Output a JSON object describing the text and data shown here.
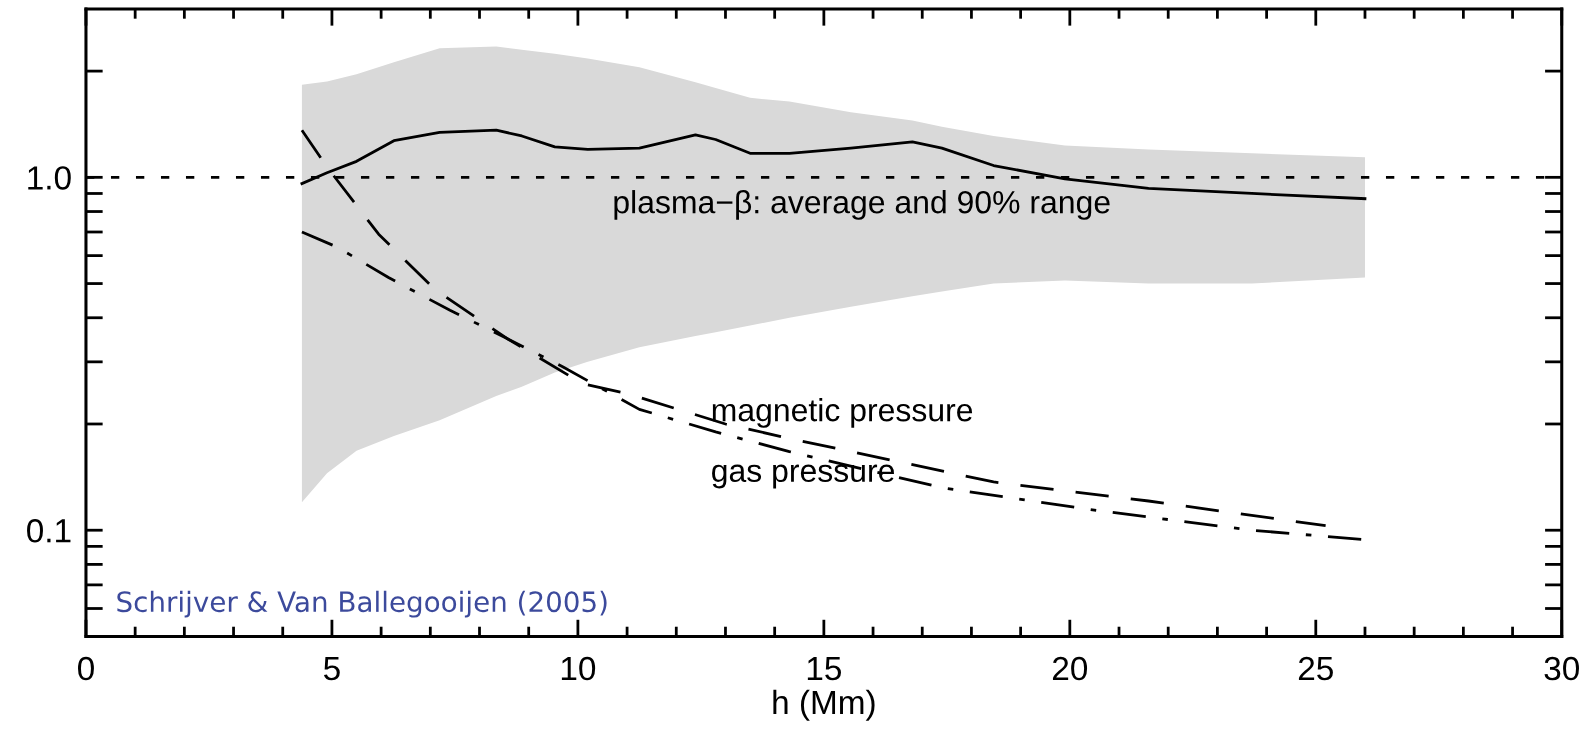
{
  "chart_data": {
    "type": "line",
    "xlabel": "h (Mm)",
    "log": "y",
    "grid": false,
    "legend": false,
    "xlim": [
      0,
      30
    ],
    "ylim": [
      0.05,
      3
    ],
    "xticks": [
      0,
      {
        "value": 1,
        "label": null
      },
      {
        "value": 2,
        "label": null
      },
      {
        "value": 3,
        "label": null
      },
      {
        "value": 4,
        "label": null
      },
      5,
      {
        "value": 6,
        "label": null
      },
      {
        "value": 7,
        "label": null
      },
      {
        "value": 8,
        "label": null
      },
      {
        "value": 9,
        "label": null
      },
      10,
      {
        "value": 11,
        "label": null
      },
      {
        "value": 12,
        "label": null
      },
      {
        "value": 13,
        "label": null
      },
      {
        "value": 14,
        "label": null
      },
      15,
      {
        "value": 16,
        "label": null
      },
      {
        "value": 17,
        "label": null
      },
      {
        "value": 18,
        "label": null
      },
      {
        "value": 19,
        "label": null
      },
      20,
      {
        "value": 21,
        "label": null
      },
      {
        "value": 22,
        "label": null
      },
      {
        "value": 23,
        "label": null
      },
      {
        "value": 24,
        "label": null
      },
      25,
      {
        "value": 26,
        "label": null
      },
      {
        "value": 27,
        "label": null
      },
      {
        "value": 28,
        "label": null
      },
      {
        "value": 29,
        "label": null
      },
      30
    ],
    "yticks": [
      {
        "value": 0.1,
        "label": "0.1"
      },
      {
        "value": 1,
        "label": "1.0"
      }
    ],
    "ref_lines": [
      {
        "axis": "y",
        "value": 1,
        "line_style": "dotted",
        "color": "#000000"
      }
    ],
    "series": [
      {
        "name": "plasma−β: average and 90% range",
        "color": "#000000",
        "line_style": "solid",
        "x": [
          4.39,
          4.9,
          5.5,
          6.26,
          7.19,
          8.34,
          8.86,
          9.53,
          10.2,
          11.25,
          12.39,
          12.8,
          13.5,
          14.3,
          15.55,
          16.8,
          17.4,
          18.45,
          19.9,
          21.6,
          23.7,
          26.0
        ],
        "values": [
          0.96,
          1.03,
          1.11,
          1.27,
          1.34,
          1.36,
          1.31,
          1.22,
          1.2,
          1.21,
          1.32,
          1.28,
          1.17,
          1.17,
          1.21,
          1.26,
          1.21,
          1.08,
          0.99,
          0.93,
          0.9,
          0.87
        ],
        "upper": [
          1.83,
          1.87,
          1.96,
          2.12,
          2.32,
          2.35,
          2.3,
          2.24,
          2.17,
          2.05,
          1.86,
          1.79,
          1.68,
          1.64,
          1.53,
          1.45,
          1.39,
          1.31,
          1.23,
          1.2,
          1.17,
          1.14
        ],
        "lower": [
          0.12,
          0.145,
          0.168,
          0.185,
          0.205,
          0.24,
          0.255,
          0.28,
          0.3,
          0.33,
          0.355,
          0.364,
          0.38,
          0.4,
          0.43,
          0.46,
          0.475,
          0.5,
          0.51,
          0.5,
          0.5,
          0.52
        ]
      },
      {
        "name": "magnetic pressure",
        "color": "#000000",
        "line_style": "dashed",
        "x": [
          4.39,
          4.9,
          5.95,
          7.1,
          8.55,
          10.1,
          11.04,
          13.0,
          14.3,
          18.45,
          21.6,
          25.2
        ],
        "values": [
          1.36,
          1.07,
          0.69,
          0.48,
          0.35,
          0.26,
          0.243,
          0.2,
          0.182,
          0.137,
          0.121,
          0.103
        ]
      },
      {
        "name": "gas pressure",
        "color": "#000000",
        "line_style": "dashdot",
        "x": [
          4.39,
          5.1,
          6.15,
          7.4,
          8.55,
          9.7,
          11.25,
          12.8,
          14.3,
          17.4,
          20.5,
          23.7,
          26.0
        ],
        "values": [
          0.7,
          0.635,
          0.52,
          0.42,
          0.35,
          0.29,
          0.22,
          0.19,
          0.167,
          0.132,
          0.114,
          0.1,
          0.094
        ]
      }
    ],
    "annotations": [
      "Schrijver & Van Ballegooijen (2005)"
    ]
  }
}
